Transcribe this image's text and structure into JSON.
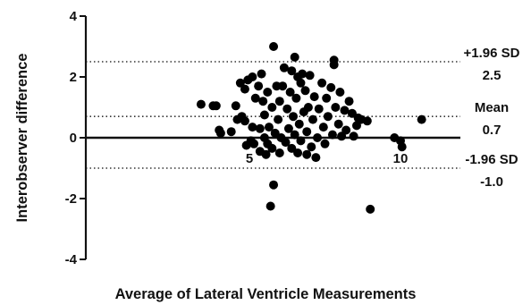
{
  "chart_data": {
    "type": "scatter",
    "xlabel": "Average of Lateral Ventricle Measurements",
    "ylabel": "Interobserver difference",
    "ylim": [
      -4,
      4
    ],
    "xlim": [
      0,
      12
    ],
    "x_ticks": [
      {
        "value": 5,
        "label": "5"
      },
      {
        "value": 10,
        "label": "10"
      }
    ],
    "y_ticks": [
      {
        "value": 4,
        "label": "4"
      },
      {
        "value": 2,
        "label": "2"
      },
      {
        "value": 0,
        "label": "0"
      },
      {
        "value": -2,
        "label": "-2"
      },
      {
        "value": -4,
        "label": "-4"
      }
    ],
    "reference_lines": [
      {
        "value": 2.5,
        "label": "+1.96 SD",
        "value_label": "2.5",
        "style": "dotted"
      },
      {
        "value": 0.7,
        "label": "Mean",
        "value_label": "0.7",
        "style": "dotted"
      },
      {
        "value": -1.0,
        "label": "-1.96 SD",
        "value_label": "-1.0",
        "style": "dotted"
      }
    ],
    "grid": false,
    "marker_color": "#000000",
    "points": [
      {
        "x": 3.4,
        "y": 1.1
      },
      {
        "x": 3.8,
        "y": 1.05
      },
      {
        "x": 3.9,
        "y": 1.05
      },
      {
        "x": 4.0,
        "y": 0.25
      },
      {
        "x": 4.05,
        "y": 0.15
      },
      {
        "x": 4.4,
        "y": 0.2
      },
      {
        "x": 4.55,
        "y": 1.05
      },
      {
        "x": 4.6,
        "y": 0.6
      },
      {
        "x": 4.7,
        "y": 1.8
      },
      {
        "x": 4.75,
        "y": 0.7
      },
      {
        "x": 4.85,
        "y": 1.6
      },
      {
        "x": 4.85,
        "y": 0.55
      },
      {
        "x": 4.9,
        "y": -0.25
      },
      {
        "x": 4.95,
        "y": 1.9
      },
      {
        "x": 5.05,
        "y": -0.1
      },
      {
        "x": 5.1,
        "y": 2.0
      },
      {
        "x": 5.1,
        "y": 0.35
      },
      {
        "x": 5.15,
        "y": -0.2
      },
      {
        "x": 5.2,
        "y": 1.3
      },
      {
        "x": 5.3,
        "y": 1.7
      },
      {
        "x": 5.35,
        "y": -0.45
      },
      {
        "x": 5.35,
        "y": 0.3
      },
      {
        "x": 5.4,
        "y": 2.1
      },
      {
        "x": 5.45,
        "y": 1.2
      },
      {
        "x": 5.5,
        "y": 0.0
      },
      {
        "x": 5.5,
        "y": 0.75
      },
      {
        "x": 5.55,
        "y": -0.55
      },
      {
        "x": 5.6,
        "y": 1.5
      },
      {
        "x": 5.6,
        "y": -0.2
      },
      {
        "x": 5.65,
        "y": 0.35
      },
      {
        "x": 5.7,
        "y": -2.25
      },
      {
        "x": 5.75,
        "y": -0.35
      },
      {
        "x": 5.75,
        "y": 1.0
      },
      {
        "x": 5.8,
        "y": -1.55
      },
      {
        "x": 5.8,
        "y": 3.0
      },
      {
        "x": 5.85,
        "y": 0.15
      },
      {
        "x": 5.9,
        "y": 1.7
      },
      {
        "x": 5.95,
        "y": 0.6
      },
      {
        "x": 6.0,
        "y": -0.5
      },
      {
        "x": 6.0,
        "y": 1.2
      },
      {
        "x": 6.05,
        "y": 0.0
      },
      {
        "x": 6.1,
        "y": 1.7
      },
      {
        "x": 6.15,
        "y": 2.3
      },
      {
        "x": 6.2,
        "y": -0.15
      },
      {
        "x": 6.25,
        "y": 0.95
      },
      {
        "x": 6.3,
        "y": 0.3
      },
      {
        "x": 6.35,
        "y": 1.5
      },
      {
        "x": 6.4,
        "y": -0.35
      },
      {
        "x": 6.4,
        "y": 2.2
      },
      {
        "x": 6.45,
        "y": 0.7
      },
      {
        "x": 6.5,
        "y": 0.1
      },
      {
        "x": 6.5,
        "y": 2.65
      },
      {
        "x": 6.55,
        "y": 1.3
      },
      {
        "x": 6.6,
        "y": -0.5
      },
      {
        "x": 6.6,
        "y": 2.0
      },
      {
        "x": 6.65,
        "y": 0.45
      },
      {
        "x": 6.7,
        "y": 1.8
      },
      {
        "x": 6.7,
        "y": -0.1
      },
      {
        "x": 6.75,
        "y": 2.1
      },
      {
        "x": 6.8,
        "y": 0.85
      },
      {
        "x": 6.85,
        "y": 1.55
      },
      {
        "x": 6.9,
        "y": -0.55
      },
      {
        "x": 6.9,
        "y": 0.2
      },
      {
        "x": 6.95,
        "y": 1.0
      },
      {
        "x": 7.0,
        "y": 2.05
      },
      {
        "x": 7.05,
        "y": -0.3
      },
      {
        "x": 7.1,
        "y": 0.6
      },
      {
        "x": 7.15,
        "y": 1.35
      },
      {
        "x": 7.2,
        "y": -0.65
      },
      {
        "x": 7.25,
        "y": 0.0
      },
      {
        "x": 7.3,
        "y": 0.95
      },
      {
        "x": 7.4,
        "y": 1.8
      },
      {
        "x": 7.45,
        "y": 0.35
      },
      {
        "x": 7.5,
        "y": -0.2
      },
      {
        "x": 7.55,
        "y": 1.3
      },
      {
        "x": 7.6,
        "y": 0.7
      },
      {
        "x": 7.7,
        "y": 1.65
      },
      {
        "x": 7.75,
        "y": 0.1
      },
      {
        "x": 7.8,
        "y": 2.55
      },
      {
        "x": 7.8,
        "y": 2.4
      },
      {
        "x": 7.85,
        "y": 1.0
      },
      {
        "x": 7.95,
        "y": 0.45
      },
      {
        "x": 8.0,
        "y": 1.5
      },
      {
        "x": 8.05,
        "y": 0.05
      },
      {
        "x": 8.15,
        "y": 0.9
      },
      {
        "x": 8.2,
        "y": 0.25
      },
      {
        "x": 8.3,
        "y": 1.2
      },
      {
        "x": 8.4,
        "y": 0.8
      },
      {
        "x": 8.45,
        "y": 0.05
      },
      {
        "x": 8.55,
        "y": 0.4
      },
      {
        "x": 8.6,
        "y": 0.65
      },
      {
        "x": 8.7,
        "y": 0.6
      },
      {
        "x": 8.9,
        "y": 0.55
      },
      {
        "x": 9.0,
        "y": -2.35
      },
      {
        "x": 9.8,
        "y": 0.0
      },
      {
        "x": 10.0,
        "y": -0.1
      },
      {
        "x": 10.05,
        "y": -0.3
      },
      {
        "x": 10.7,
        "y": 0.6
      }
    ]
  }
}
